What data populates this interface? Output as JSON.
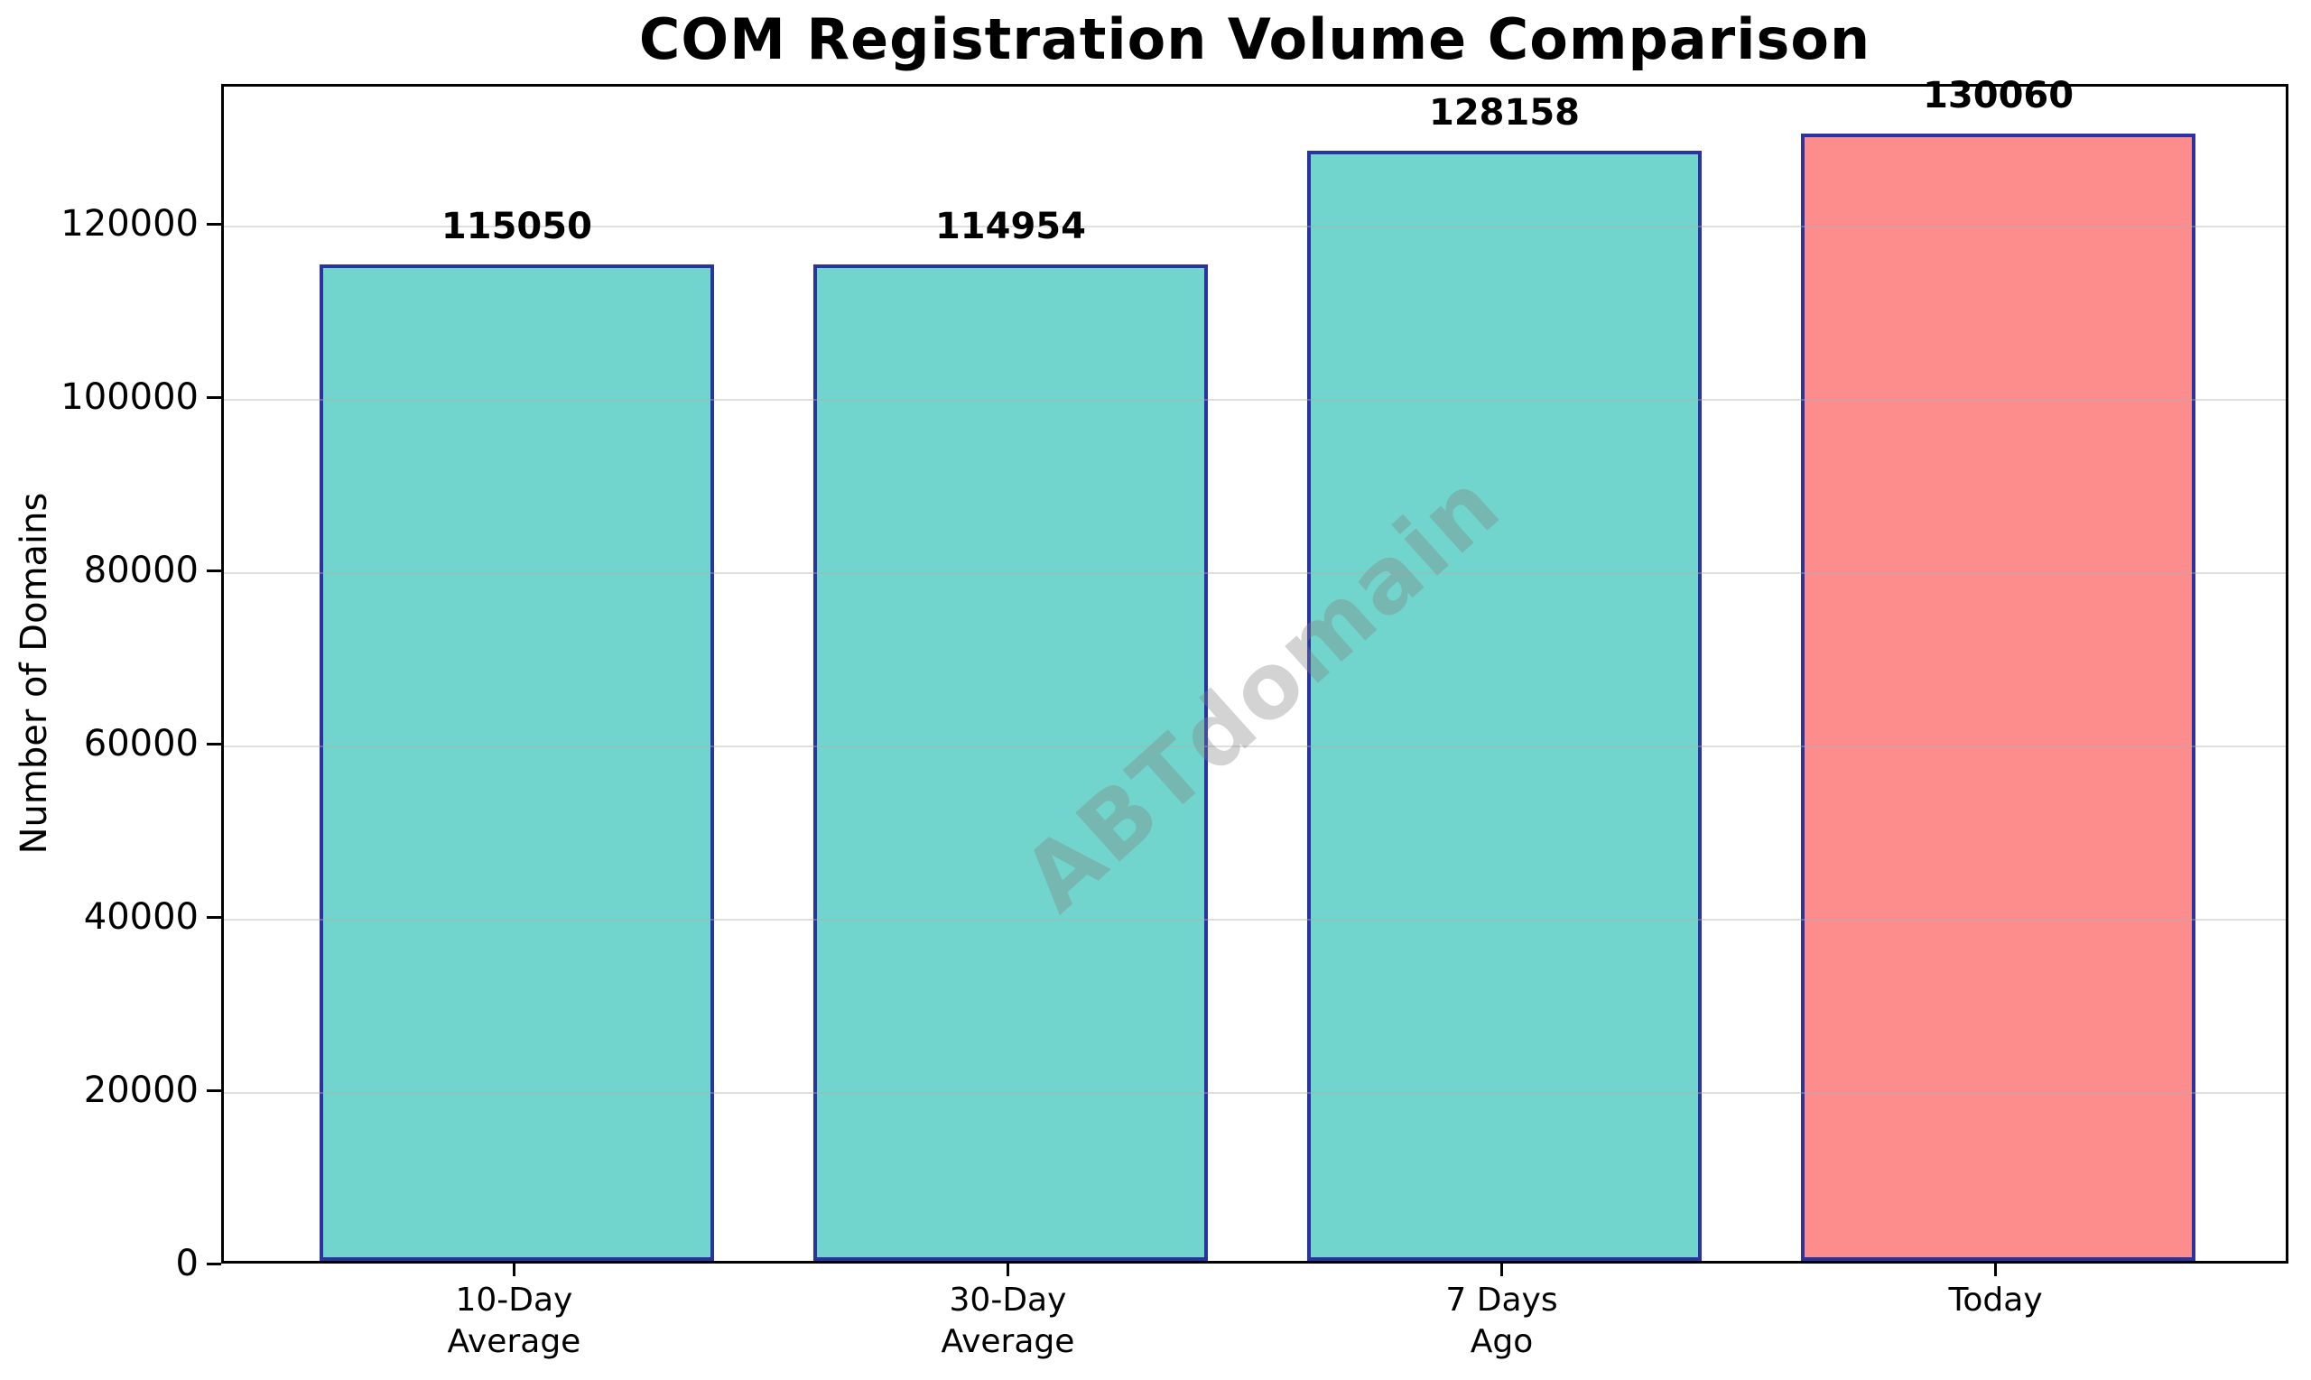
{
  "chart_data": {
    "type": "bar",
    "title": "COM Registration Volume Comparison",
    "ylabel": "Number of Domains",
    "xlabel": "",
    "categories": [
      "10-Day Average",
      "30-Day Average",
      "7 Days Ago",
      "Today"
    ],
    "category_lines": [
      [
        "10-Day",
        "Average"
      ],
      [
        "30-Day",
        "Average"
      ],
      [
        "7 Days",
        "Ago"
      ],
      [
        "Today"
      ]
    ],
    "values": [
      115050,
      114954,
      128158,
      130060
    ],
    "value_labels": [
      "115050",
      "114954",
      "128158",
      "130060"
    ],
    "bar_colors": [
      "#72d5cd",
      "#72d5cd",
      "#72d5cd",
      "#fd8c8c"
    ],
    "bar_edge_color": "#2a33a0",
    "yticks": [
      0,
      20000,
      40000,
      60000,
      80000,
      100000,
      120000
    ],
    "ytick_labels": [
      "0",
      "20000",
      "40000",
      "60000",
      "80000",
      "100000",
      "120000"
    ],
    "ylim": [
      0,
      136150
    ],
    "grid": "horizontal",
    "grid_color": "#b0b0b0",
    "legend": "none",
    "watermark": "ABTdomain",
    "watermark_color": "#808080",
    "colors": {
      "bar_teal": "#72d5cd",
      "bar_salmon": "#fd8c8c",
      "edge_navy": "#2a33a0",
      "axis_black": "#000000",
      "background": "#ffffff"
    }
  }
}
